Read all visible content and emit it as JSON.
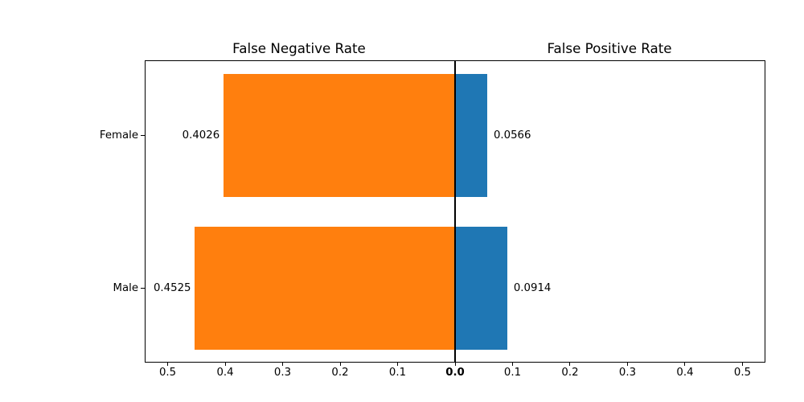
{
  "chart_data": {
    "type": "bar",
    "variant": "horizontal-diverging",
    "titles": {
      "left": "False Negative Rate",
      "right": "False Positive Rate"
    },
    "categories": [
      "Female",
      "Male"
    ],
    "series": [
      {
        "key": "fnr",
        "name": "False Negative Rate",
        "side": "left",
        "color": "#ff7f0e",
        "values": [
          0.4026,
          0.4525
        ],
        "value_labels": [
          "0.4026",
          "0.4525"
        ]
      },
      {
        "key": "fpr",
        "name": "False Positive Rate",
        "side": "right",
        "color": "#1f77b4",
        "values": [
          0.0566,
          0.0914
        ],
        "value_labels": [
          "0.0566",
          "0.0914"
        ]
      }
    ],
    "x_axis": {
      "half_range": 0.5385,
      "tick_interval": 0.1,
      "ticks": [
        {
          "pos": -0.5,
          "label": "0.5"
        },
        {
          "pos": -0.4,
          "label": "0.4"
        },
        {
          "pos": -0.3,
          "label": "0.3"
        },
        {
          "pos": -0.2,
          "label": "0.2"
        },
        {
          "pos": -0.1,
          "label": "0.1"
        },
        {
          "pos": 0.0,
          "label": "0.0",
          "bold": true
        },
        {
          "pos": 0.1,
          "label": "0.1"
        },
        {
          "pos": 0.2,
          "label": "0.2"
        },
        {
          "pos": 0.3,
          "label": "0.3"
        },
        {
          "pos": 0.4,
          "label": "0.4"
        },
        {
          "pos": 0.5,
          "label": "0.5"
        }
      ]
    },
    "grid": false,
    "legend": "none",
    "background": "#ffffff",
    "axis_color": "#000000"
  }
}
